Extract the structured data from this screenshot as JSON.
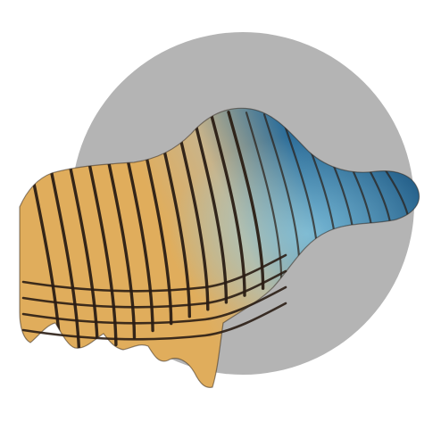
{
  "illustration": {
    "kind": "logo-graphic",
    "description_icon": "sculpted-surface-icon",
    "colors": {
      "background": "#ffffff",
      "disc": "#b4b4b4",
      "surface_warm": "#e0ad5c",
      "surface_mid": "#c9b48a",
      "surface_cool": "#2f6f9a",
      "surface_deep": "#1f5a85",
      "highlight": "#8fd0e8",
      "contour": "#2a1d14"
    },
    "contour_count": 20,
    "cross_band_count": 4
  }
}
